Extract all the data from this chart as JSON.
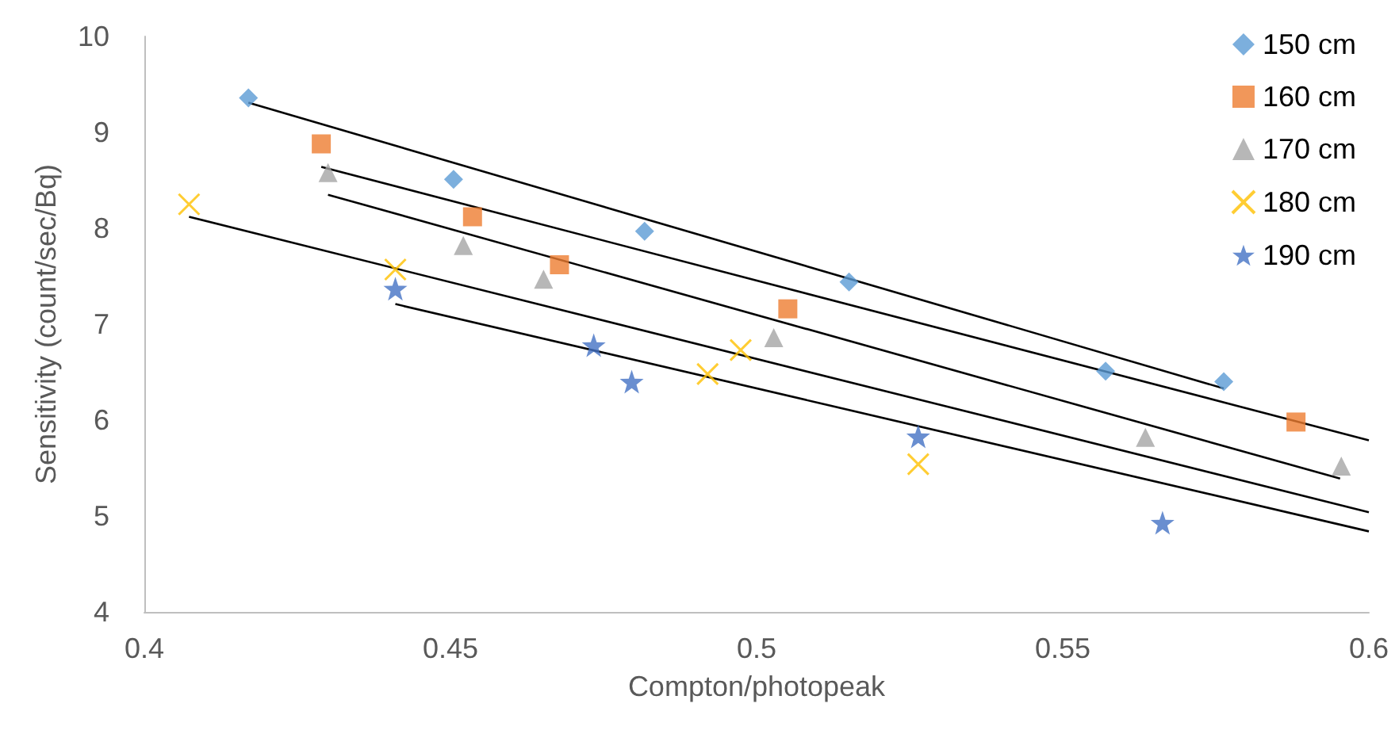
{
  "chart_data": {
    "type": "scatter",
    "xlabel": "Compton/photopeak",
    "ylabel": "Sensitivity (count/sec/Bq)",
    "xlim": [
      0.4,
      0.6
    ],
    "xticks": [
      0.4,
      0.45,
      0.5,
      0.55,
      0.6
    ],
    "ylim": [
      4,
      10
    ],
    "yticks": [
      4,
      5,
      6,
      7,
      8,
      9,
      10
    ],
    "grid": false,
    "legend": "top right",
    "series": [
      {
        "name": "150 cm",
        "color": "#5b9bd5",
        "marker": "diamond",
        "x": [
          0.417,
          0.4505,
          0.4817,
          0.5151,
          0.557,
          0.5763
        ],
        "values": [
          9.36,
          8.51,
          7.97,
          7.44,
          6.51,
          6.4
        ]
      },
      {
        "name": "160 cm",
        "color": "#ed7d31",
        "marker": "square",
        "x": [
          0.4289,
          0.4536,
          0.4678,
          0.5051,
          0.5881
        ],
        "values": [
          8.88,
          8.12,
          7.62,
          7.16,
          5.98
        ]
      },
      {
        "name": "170 cm",
        "color": "#a5a5a5",
        "marker": "triangle",
        "x": [
          0.43,
          0.4521,
          0.4652,
          0.5028,
          0.5635,
          0.5955
        ],
        "values": [
          8.58,
          7.82,
          7.47,
          6.86,
          5.82,
          5.52
        ]
      },
      {
        "name": "180 cm",
        "color": "#ffc000",
        "marker": "cross",
        "x": [
          0.4073,
          0.441,
          0.492,
          0.4974,
          0.5264
        ],
        "values": [
          8.25,
          7.57,
          6.48,
          6.73,
          5.54
        ]
      },
      {
        "name": "190 cm",
        "color": "#4472c4",
        "marker": "star",
        "x": [
          0.441,
          0.4734,
          0.4796,
          0.5264,
          0.5663
        ],
        "values": [
          7.37,
          6.78,
          6.4,
          5.83,
          4.93
        ]
      },
      {
        "type": "line",
        "color": "#000000",
        "marker": "none",
        "x": [
          0.417,
          0.5763
        ],
        "values": [
          9.31,
          6.33
        ]
      },
      {
        "type": "line",
        "color": "#000000",
        "marker": "none",
        "x": [
          0.4289,
          0.6
        ],
        "values": [
          8.64,
          5.79
        ]
      },
      {
        "type": "line",
        "color": "#000000",
        "marker": "none",
        "x": [
          0.43,
          0.5953
        ],
        "values": [
          8.35,
          5.39
        ]
      },
      {
        "type": "line",
        "color": "#000000",
        "marker": "none",
        "x": [
          0.4073,
          0.6
        ],
        "values": [
          8.12,
          5.04
        ]
      },
      {
        "type": "line",
        "color": "#000000",
        "marker": "none",
        "x": [
          0.441,
          0.6
        ],
        "values": [
          7.21,
          4.84
        ]
      }
    ]
  }
}
